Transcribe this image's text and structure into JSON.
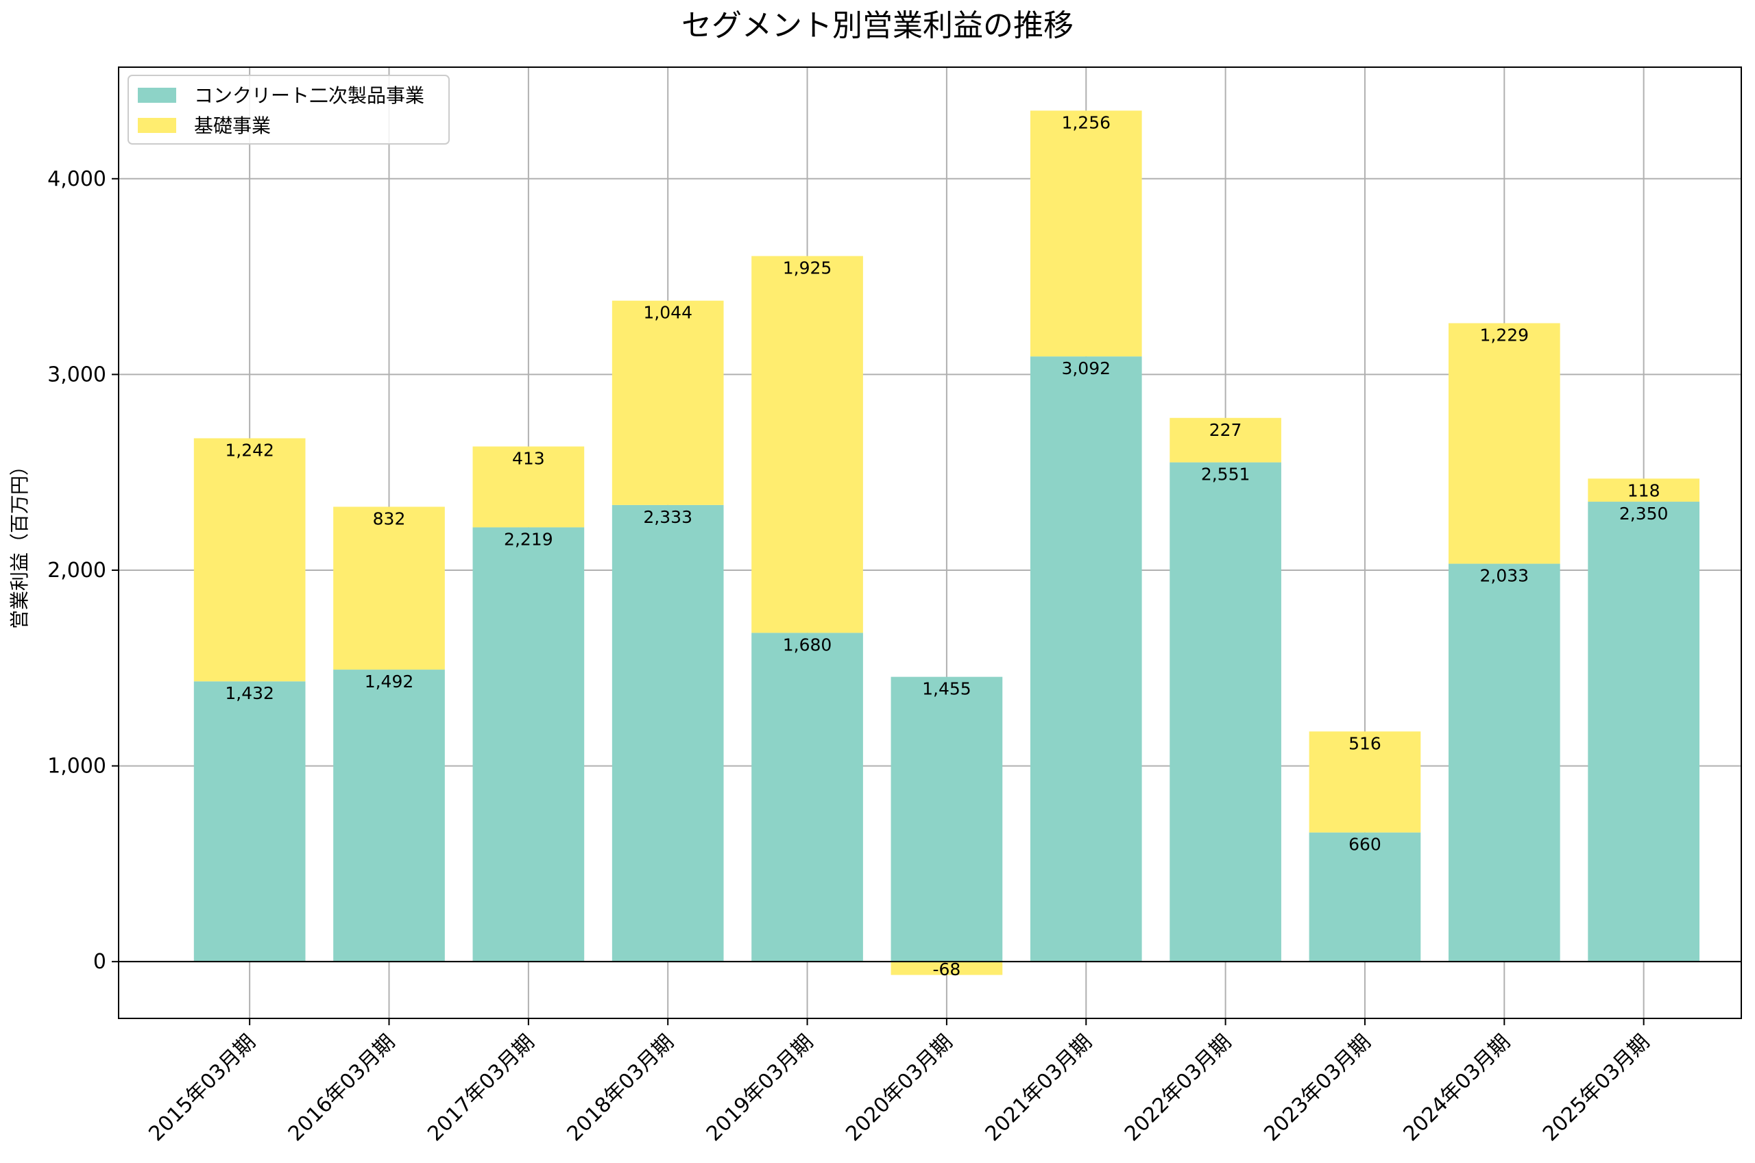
{
  "chart_data": {
    "type": "bar",
    "stacked": true,
    "title": "セグメント別営業利益の推移",
    "xlabel": "",
    "ylabel": "営業利益（百万円）",
    "categories": [
      "2015年03月期",
      "2016年03月期",
      "2017年03月期",
      "2018年03月期",
      "2019年03月期",
      "2020年03月期",
      "2021年03月期",
      "2022年03月期",
      "2023年03月期",
      "2024年03月期",
      "2025年03月期"
    ],
    "series": [
      {
        "name": "コンクリート二次製品事業",
        "color": "#8dd3c7",
        "values": [
          1432,
          1492,
          2219,
          2333,
          1680,
          1455,
          3092,
          2551,
          660,
          2033,
          2350
        ]
      },
      {
        "name": "基礎事業",
        "color": "#ffed6f",
        "values": [
          1242,
          832,
          413,
          1044,
          1925,
          -68,
          1256,
          227,
          516,
          1229,
          118
        ]
      }
    ],
    "ylim": [
      -290,
      4570
    ],
    "yticks": [
      0,
      1000,
      2000,
      3000,
      4000
    ],
    "ytick_labels": [
      "0",
      "1,000",
      "2,000",
      "3,000",
      "4,000"
    ],
    "grid": true,
    "legend_position": "top-left"
  }
}
